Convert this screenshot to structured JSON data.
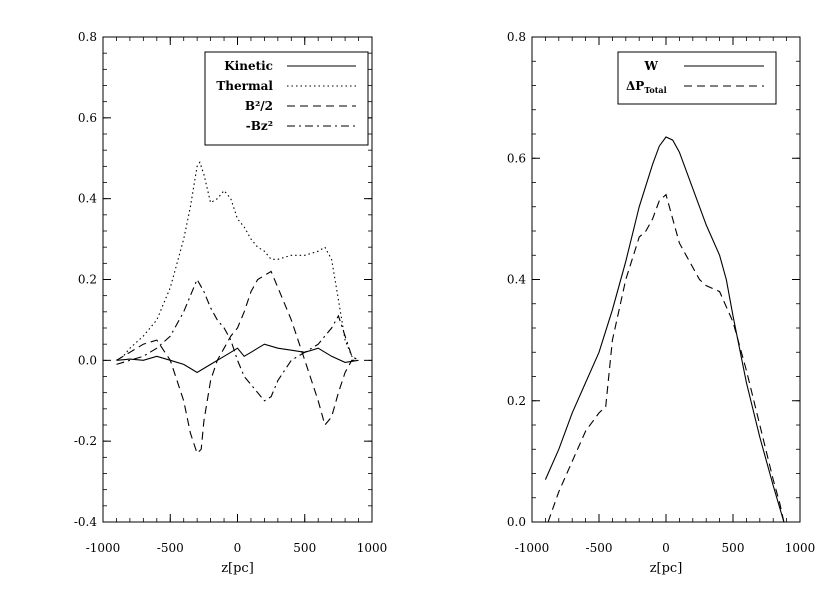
{
  "chart_data": [
    {
      "type": "line",
      "xlabel": "z[pc]",
      "ylabel": "",
      "xlim": [
        -1000,
        1000
      ],
      "ylim": [
        -0.4,
        0.8
      ],
      "xticks": [
        "-1000",
        "-500",
        "0",
        "500",
        "1000"
      ],
      "yticks": [
        "-0.4",
        "-0.2",
        "0.0",
        "0.2",
        "0.4",
        "0.6",
        "0.8"
      ],
      "legend_position": "top-right",
      "series": [
        {
          "name": "Kinetic",
          "style": "solid",
          "points": [
            [
              -900,
              0.0
            ],
            [
              -800,
              0.003
            ],
            [
              -700,
              0.0
            ],
            [
              -600,
              0.01
            ],
            [
              -500,
              0.0
            ],
            [
              -400,
              -0.01
            ],
            [
              -350,
              -0.02
            ],
            [
              -300,
              -0.03
            ],
            [
              -250,
              -0.02
            ],
            [
              -200,
              -0.01
            ],
            [
              -100,
              0.01
            ],
            [
              -50,
              0.02
            ],
            [
              0,
              0.03
            ],
            [
              50,
              0.01
            ],
            [
              100,
              0.02
            ],
            [
              150,
              0.03
            ],
            [
              200,
              0.04
            ],
            [
              300,
              0.03
            ],
            [
              400,
              0.025
            ],
            [
              500,
              0.02
            ],
            [
              600,
              0.03
            ],
            [
              700,
              0.01
            ],
            [
              800,
              -0.005
            ],
            [
              900,
              0.0
            ]
          ]
        },
        {
          "name": "Thermal",
          "style": "dotted",
          "points": [
            [
              -900,
              0.0
            ],
            [
              -850,
              0.01
            ],
            [
              -800,
              0.03
            ],
            [
              -700,
              0.06
            ],
            [
              -600,
              0.1
            ],
            [
              -500,
              0.18
            ],
            [
              -400,
              0.3
            ],
            [
              -350,
              0.38
            ],
            [
              -300,
              0.48
            ],
            [
              -280,
              0.49
            ],
            [
              -250,
              0.46
            ],
            [
              -200,
              0.39
            ],
            [
              -150,
              0.4
            ],
            [
              -100,
              0.42
            ],
            [
              -50,
              0.4
            ],
            [
              0,
              0.35
            ],
            [
              50,
              0.33
            ],
            [
              100,
              0.3
            ],
            [
              150,
              0.28
            ],
            [
              200,
              0.27
            ],
            [
              250,
              0.25
            ],
            [
              300,
              0.25
            ],
            [
              400,
              0.26
            ],
            [
              500,
              0.26
            ],
            [
              600,
              0.27
            ],
            [
              650,
              0.28
            ],
            [
              700,
              0.25
            ],
            [
              750,
              0.15
            ],
            [
              800,
              0.05
            ],
            [
              850,
              0.01
            ],
            [
              900,
              0.0
            ]
          ]
        },
        {
          "name": "B²/2",
          "style": "dashed",
          "points": [
            [
              -900,
              0.0
            ],
            [
              -800,
              0.02
            ],
            [
              -700,
              0.04
            ],
            [
              -600,
              0.05
            ],
            [
              -500,
              0.0
            ],
            [
              -450,
              -0.05
            ],
            [
              -400,
              -0.1
            ],
            [
              -350,
              -0.18
            ],
            [
              -300,
              -0.23
            ],
            [
              -270,
              -0.22
            ],
            [
              -250,
              -0.15
            ],
            [
              -200,
              -0.05
            ],
            [
              -150,
              0.0
            ],
            [
              -100,
              0.03
            ],
            [
              -50,
              0.06
            ],
            [
              0,
              0.08
            ],
            [
              50,
              0.12
            ],
            [
              100,
              0.17
            ],
            [
              150,
              0.2
            ],
            [
              200,
              0.21
            ],
            [
              250,
              0.22
            ],
            [
              300,
              0.18
            ],
            [
              400,
              0.1
            ],
            [
              500,
              0.0
            ],
            [
              550,
              -0.05
            ],
            [
              600,
              -0.1
            ],
            [
              650,
              -0.16
            ],
            [
              700,
              -0.14
            ],
            [
              750,
              -0.08
            ],
            [
              800,
              -0.03
            ],
            [
              850,
              0.0
            ],
            [
              900,
              0.0
            ]
          ]
        },
        {
          "name": "-Bz²",
          "style": "dashdot",
          "points": [
            [
              -900,
              -0.01
            ],
            [
              -800,
              0.0
            ],
            [
              -700,
              0.01
            ],
            [
              -600,
              0.03
            ],
            [
              -500,
              0.06
            ],
            [
              -400,
              0.12
            ],
            [
              -300,
              0.2
            ],
            [
              -250,
              0.17
            ],
            [
              -200,
              0.13
            ],
            [
              -150,
              0.1
            ],
            [
              -100,
              0.08
            ],
            [
              -50,
              0.05
            ],
            [
              0,
              0.0
            ],
            [
              50,
              -0.04
            ],
            [
              100,
              -0.06
            ],
            [
              150,
              -0.08
            ],
            [
              200,
              -0.1
            ],
            [
              250,
              -0.09
            ],
            [
              300,
              -0.05
            ],
            [
              400,
              0.0
            ],
            [
              500,
              0.02
            ],
            [
              600,
              0.04
            ],
            [
              700,
              0.08
            ],
            [
              750,
              0.11
            ],
            [
              800,
              0.06
            ],
            [
              850,
              0.01
            ],
            [
              900,
              0.0
            ]
          ]
        }
      ]
    },
    {
      "type": "line",
      "xlabel": "z[pc]",
      "ylabel": "",
      "xlim": [
        -1000,
        1000
      ],
      "ylim": [
        0.0,
        0.8
      ],
      "xticks": [
        "-1000",
        "-500",
        "0",
        "500",
        "1000"
      ],
      "yticks": [
        "0.0",
        "0.2",
        "0.4",
        "0.6",
        "0.8"
      ],
      "legend_position": "top-right",
      "series": [
        {
          "name": "W",
          "style": "solid",
          "points": [
            [
              -900,
              0.07
            ],
            [
              -800,
              0.12
            ],
            [
              -700,
              0.18
            ],
            [
              -600,
              0.23
            ],
            [
              -500,
              0.28
            ],
            [
              -400,
              0.35
            ],
            [
              -300,
              0.43
            ],
            [
              -200,
              0.52
            ],
            [
              -100,
              0.59
            ],
            [
              -50,
              0.62
            ],
            [
              0,
              0.635
            ],
            [
              50,
              0.63
            ],
            [
              100,
              0.61
            ],
            [
              200,
              0.55
            ],
            [
              300,
              0.49
            ],
            [
              400,
              0.44
            ],
            [
              450,
              0.4
            ],
            [
              500,
              0.34
            ],
            [
              600,
              0.23
            ],
            [
              700,
              0.14
            ],
            [
              800,
              0.06
            ],
            [
              880,
              0.0
            ]
          ]
        },
        {
          "name": "ΔP",
          "subscript": "Total",
          "style": "dashed",
          "points": [
            [
              -880,
              0.0
            ],
            [
              -800,
              0.05
            ],
            [
              -700,
              0.1
            ],
            [
              -600,
              0.15
            ],
            [
              -500,
              0.18
            ],
            [
              -450,
              0.19
            ],
            [
              -400,
              0.3
            ],
            [
              -300,
              0.4
            ],
            [
              -200,
              0.47
            ],
            [
              -150,
              0.48
            ],
            [
              -100,
              0.5
            ],
            [
              -50,
              0.53
            ],
            [
              0,
              0.54
            ],
            [
              50,
              0.5
            ],
            [
              100,
              0.46
            ],
            [
              150,
              0.44
            ],
            [
              200,
              0.42
            ],
            [
              250,
              0.4
            ],
            [
              300,
              0.39
            ],
            [
              400,
              0.38
            ],
            [
              500,
              0.33
            ],
            [
              600,
              0.25
            ],
            [
              700,
              0.16
            ],
            [
              800,
              0.07
            ],
            [
              850,
              0.03
            ],
            [
              880,
              0.0
            ]
          ]
        }
      ]
    }
  ]
}
